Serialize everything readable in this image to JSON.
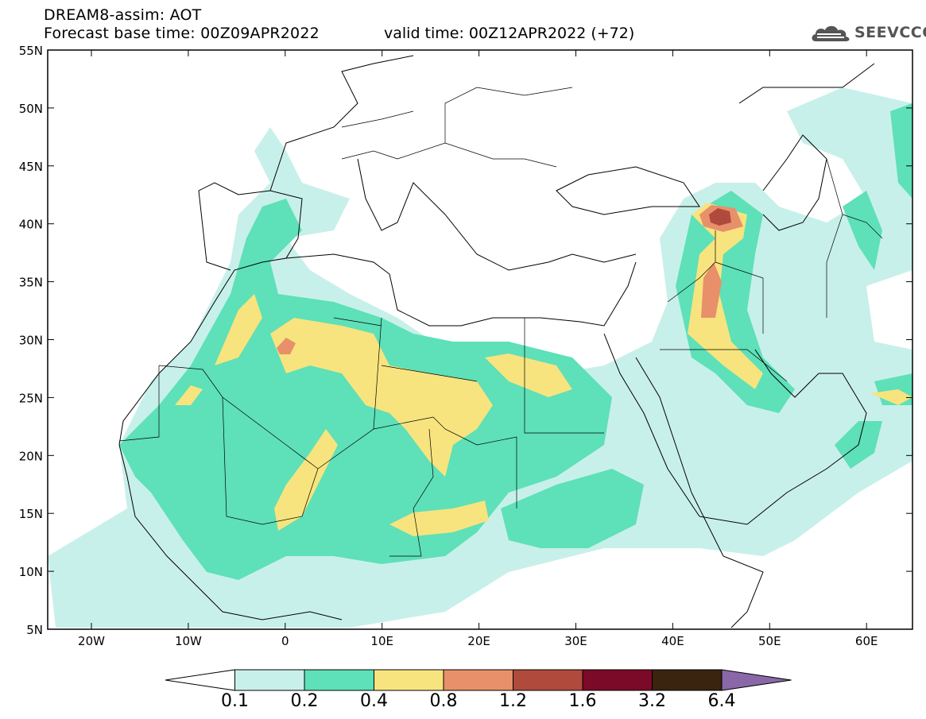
{
  "header": {
    "title": "DREAM8-assim: AOT",
    "base_time_label": "Forecast base time: 00Z09APR2022",
    "valid_time_label": "valid time: 00Z12APR2022 (+72)"
  },
  "logo": {
    "text": "SEEVCCC",
    "icon": "cloud-logo-icon"
  },
  "map": {
    "lat_labels": [
      "55N",
      "50N",
      "45N",
      "40N",
      "35N",
      "30N",
      "25N",
      "20N",
      "15N",
      "10N",
      "5N"
    ],
    "lon_labels": [
      "20W",
      "10W",
      "0",
      "10E",
      "20E",
      "30E",
      "40E",
      "50E",
      "60E"
    ]
  },
  "legend": {
    "colors": [
      "#ffffff",
      "#c8f0ea",
      "#5ee0b8",
      "#f7e47e",
      "#e8906a",
      "#b04a3c",
      "#7a0a28",
      "#3a2410",
      "#8a68a8"
    ],
    "labels": [
      "0.1",
      "0.2",
      "0.4",
      "0.8",
      "1.2",
      "1.6",
      "3.2",
      "6.4"
    ]
  }
}
